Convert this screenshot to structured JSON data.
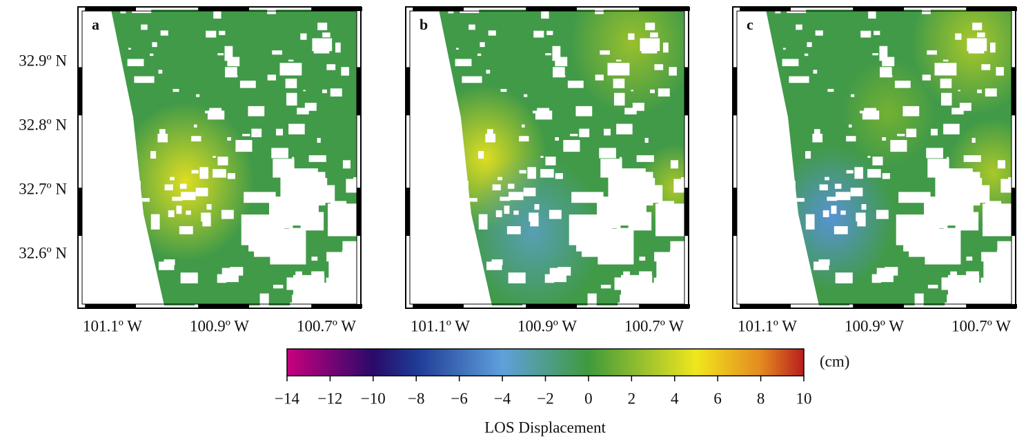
{
  "panels": [
    {
      "label": "a"
    },
    {
      "label": "b"
    },
    {
      "label": "c"
    }
  ],
  "latitude_ticks": [
    {
      "value": 32.9,
      "label": "32.9º N"
    },
    {
      "value": 32.8,
      "label": "32.8º N"
    },
    {
      "value": 32.7,
      "label": "32.7º N"
    },
    {
      "value": 32.6,
      "label": "32.6º N"
    }
  ],
  "longitude_ticks": [
    {
      "value": 101.1,
      "label": "101.1º W"
    },
    {
      "value": 100.9,
      "label": "100.9º W"
    },
    {
      "value": 100.7,
      "label": "100.7º W"
    }
  ],
  "colorbar": {
    "title": "LOS Displacement",
    "unit": "(cm)",
    "range": [
      -14,
      10
    ],
    "ticks": [
      {
        "value": -14,
        "label": "−14"
      },
      {
        "value": -12,
        "label": "−12"
      },
      {
        "value": -10,
        "label": "−10"
      },
      {
        "value": -8,
        "label": "−8"
      },
      {
        "value": -6,
        "label": "−6"
      },
      {
        "value": -4,
        "label": "−4"
      },
      {
        "value": -2,
        "label": "−2"
      },
      0,
      2,
      4,
      6,
      8,
      10
    ],
    "colormap": [
      {
        "value": -14,
        "color": "#c8007e"
      },
      {
        "value": -10,
        "color": "#2a0a6a"
      },
      {
        "value": -8,
        "color": "#1e3a94"
      },
      {
        "value": -4,
        "color": "#5fa0dc"
      },
      {
        "value": 0,
        "color": "#3f9a3c"
      },
      {
        "value": 5,
        "color": "#f0e61e"
      },
      {
        "value": 8,
        "color": "#e48a20"
      },
      {
        "value": 10,
        "color": "#b81e1e"
      }
    ]
  }
}
